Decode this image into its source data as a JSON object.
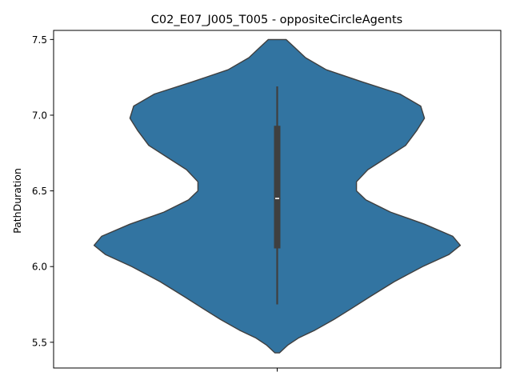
{
  "chart_data": {
    "type": "violin",
    "title": "C02_E07_J005_T005 - oppositeCircleAgents",
    "xlabel": "",
    "ylabel": "PathDuration",
    "ylim": [
      5.33,
      7.56
    ],
    "yticks": [
      5.5,
      6.0,
      6.5,
      7.0,
      7.5
    ],
    "ytick_labels": [
      "5.5",
      "6.0",
      "6.5",
      "7.0",
      "7.5"
    ],
    "categories": [
      ""
    ],
    "grid": false,
    "colors": {
      "body": "#3274a1",
      "edge": "#3f3f3f",
      "box": "#3f3f3f",
      "median": "#ffffff"
    },
    "violin": {
      "profile": [
        [
          5.43,
          0.012
        ],
        [
          5.48,
          0.055
        ],
        [
          5.53,
          0.115
        ],
        [
          5.58,
          0.2
        ],
        [
          5.65,
          0.3
        ],
        [
          5.72,
          0.39
        ],
        [
          5.8,
          0.49
        ],
        [
          5.9,
          0.62
        ],
        [
          6.0,
          0.77
        ],
        [
          6.08,
          0.91
        ],
        [
          6.14,
          0.97
        ],
        [
          6.2,
          0.93
        ],
        [
          6.28,
          0.78
        ],
        [
          6.36,
          0.6
        ],
        [
          6.44,
          0.47
        ],
        [
          6.5,
          0.42
        ],
        [
          6.56,
          0.42
        ],
        [
          6.64,
          0.48
        ],
        [
          6.72,
          0.58
        ],
        [
          6.8,
          0.68
        ],
        [
          6.9,
          0.74
        ],
        [
          6.98,
          0.78
        ],
        [
          7.06,
          0.76
        ],
        [
          7.14,
          0.65
        ],
        [
          7.22,
          0.45
        ],
        [
          7.3,
          0.26
        ],
        [
          7.38,
          0.15
        ],
        [
          7.45,
          0.09
        ],
        [
          7.5,
          0.047
        ]
      ],
      "whisker_low": 5.75,
      "whisker_high": 7.19,
      "q1": 6.12,
      "q3": 6.93,
      "median": 6.45
    }
  }
}
